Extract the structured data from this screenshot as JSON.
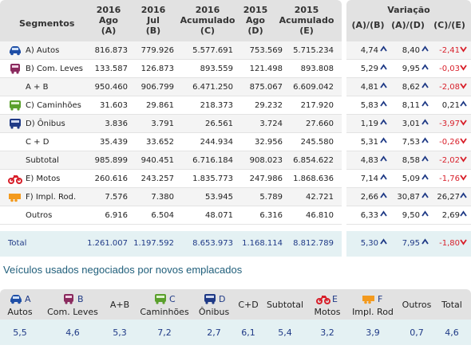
{
  "header": {
    "segmentos": "Segmentos",
    "cols": [
      {
        "l1": "2016",
        "l2": "Ago",
        "l3": "(A)"
      },
      {
        "l1": "2016",
        "l2": "Jul",
        "l3": "(B)"
      },
      {
        "l1": "2016",
        "l2": "Acumulado",
        "l3": "(C)"
      },
      {
        "l1": "2015",
        "l2": "Ago",
        "l3": "(D)"
      },
      {
        "l1": "2015",
        "l2": "Acumulado",
        "l3": "(E)"
      }
    ],
    "variacao": "Variação",
    "var_cols": [
      "(A)/(B)",
      "(A)/(D)",
      "(C)/(E)"
    ]
  },
  "rows": [
    {
      "label": "A) Autos",
      "icon": "car-icon",
      "vals": [
        "816.873",
        "779.926",
        "5.577.691",
        "753.569",
        "5.715.234"
      ],
      "var": [
        "4,74",
        "8,40",
        "-2,41"
      ],
      "dir": [
        "up",
        "up",
        "down"
      ]
    },
    {
      "label": "B) Com. Leves",
      "icon": "van-icon",
      "vals": [
        "133.587",
        "126.873",
        "893.559",
        "121.498",
        "893.808"
      ],
      "var": [
        "5,29",
        "9,95",
        "-0,03"
      ],
      "dir": [
        "up",
        "up",
        "down"
      ]
    },
    {
      "label": "A + B",
      "icon": "",
      "vals": [
        "950.460",
        "906.799",
        "6.471.250",
        "875.067",
        "6.609.042"
      ],
      "var": [
        "4,81",
        "8,62",
        "-2,08"
      ],
      "dir": [
        "up",
        "up",
        "down"
      ]
    },
    {
      "label": "C) Caminhões",
      "icon": "truck-icon",
      "vals": [
        "31.603",
        "29.861",
        "218.373",
        "29.232",
        "217.920"
      ],
      "var": [
        "5,83",
        "8,11",
        "0,21"
      ],
      "dir": [
        "up",
        "up",
        "up"
      ]
    },
    {
      "label": "D) Ônibus",
      "icon": "bus-icon",
      "vals": [
        "3.836",
        "3.791",
        "26.561",
        "3.724",
        "27.660"
      ],
      "var": [
        "1,19",
        "3,01",
        "-3,97"
      ],
      "dir": [
        "up",
        "up",
        "down"
      ]
    },
    {
      "label": "C + D",
      "icon": "",
      "vals": [
        "35.439",
        "33.652",
        "244.934",
        "32.956",
        "245.580"
      ],
      "var": [
        "5,31",
        "7,53",
        "-0,26"
      ],
      "dir": [
        "up",
        "up",
        "down"
      ]
    },
    {
      "label": "Subtotal",
      "icon": "",
      "vals": [
        "985.899",
        "940.451",
        "6.716.184",
        "908.023",
        "6.854.622"
      ],
      "var": [
        "4,83",
        "8,58",
        "-2,02"
      ],
      "dir": [
        "up",
        "up",
        "down"
      ]
    },
    {
      "label": "E) Motos",
      "icon": "motorcycle-icon",
      "vals": [
        "260.616",
        "243.257",
        "1.835.773",
        "247.986",
        "1.868.636"
      ],
      "var": [
        "7,14",
        "5,09",
        "-1,76"
      ],
      "dir": [
        "up",
        "up",
        "down"
      ]
    },
    {
      "label": "F) Impl. Rod.",
      "icon": "trailer-icon",
      "vals": [
        "7.576",
        "7.380",
        "53.945",
        "5.789",
        "42.721"
      ],
      "var": [
        "2,66",
        "30,87",
        "26,27"
      ],
      "dir": [
        "up",
        "up",
        "up"
      ]
    },
    {
      "label": "Outros",
      "icon": "",
      "vals": [
        "6.916",
        "6.504",
        "48.071",
        "6.316",
        "46.810"
      ],
      "var": [
        "6,33",
        "9,50",
        "2,69"
      ],
      "dir": [
        "up",
        "up",
        "up"
      ]
    }
  ],
  "total": {
    "label": "Total",
    "vals": [
      "1.261.007",
      "1.197.592",
      "8.653.973",
      "1.168.114",
      "8.812.789"
    ],
    "var": [
      "5,30",
      "7,95",
      "-1,80"
    ],
    "dir": [
      "up",
      "up",
      "down"
    ]
  },
  "used_section": {
    "title": "Veículos usados negociados por novos emplacados",
    "cols": [
      {
        "letter": "A",
        "name": "Autos",
        "icon": "car-icon",
        "value": "5,5"
      },
      {
        "letter": "B",
        "name": "Com. Leves",
        "icon": "van-icon",
        "value": "4,6"
      },
      {
        "letter": "",
        "name": "A+B",
        "icon": "",
        "value": "5,3"
      },
      {
        "letter": "C",
        "name": "Caminhões",
        "icon": "truck-icon",
        "value": "7,2"
      },
      {
        "letter": "D",
        "name": "Ônibus",
        "icon": "bus-icon",
        "value": "2,7"
      },
      {
        "letter": "",
        "name": "C+D",
        "icon": "",
        "value": "6,1"
      },
      {
        "letter": "",
        "name": "Subtotal",
        "icon": "",
        "value": "5,4"
      },
      {
        "letter": "E",
        "name": "Motos",
        "icon": "motorcycle-icon",
        "value": "3,2"
      },
      {
        "letter": "F",
        "name": "Impl. Rod",
        "icon": "trailer-icon",
        "value": "3,9"
      },
      {
        "letter": "",
        "name": "Outros",
        "icon": "",
        "value": "0,7"
      },
      {
        "letter": "",
        "name": "Total",
        "icon": "",
        "value": "4,6"
      }
    ]
  },
  "colors": {
    "car": "#1f4fa6",
    "van": "#8a2a5e",
    "truck": "#5aa02c",
    "bus": "#1f3a86",
    "moto": "#d81f2a",
    "trailer": "#f39a1e",
    "up": "#1f3a86",
    "down": "#d81f2a"
  }
}
